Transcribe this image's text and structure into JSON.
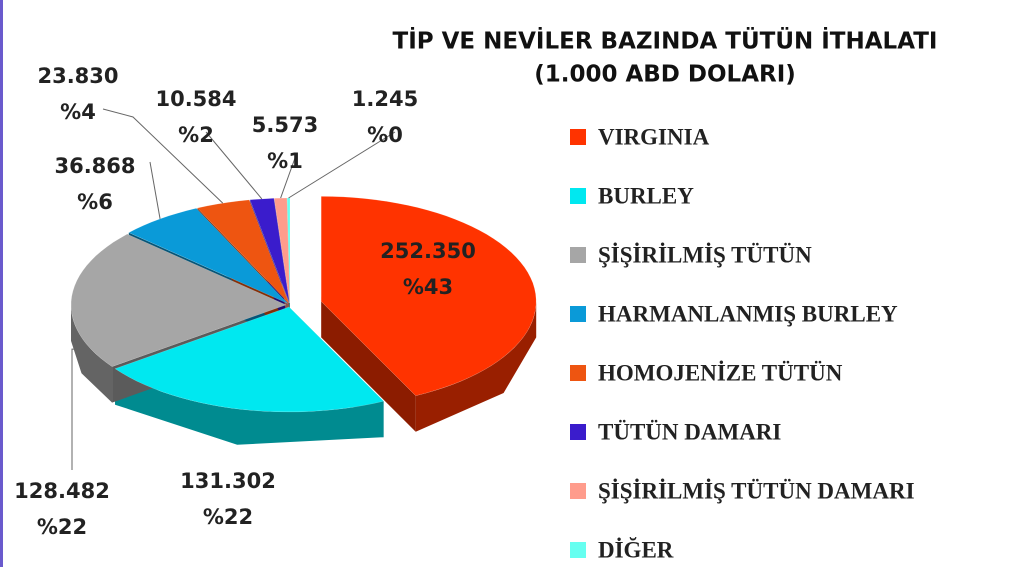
{
  "chart_data": {
    "type": "pie",
    "title": "TİP VE NEVİLER BAZINDA TÜTÜN İTHALATI",
    "subtitle": "(1.000 ABD DOLARI)",
    "categories": [
      "VIRGINIA",
      "BURLEY",
      "ŞİŞİRİLMİŞ TÜTÜN",
      "HARMANLANMIŞ BURLEY",
      "HOMOJENİZE TÜTÜN",
      "TÜTÜN DAMARI",
      "ŞİŞİRİLMİŞ TÜTÜN DAMARI",
      "DİĞER"
    ],
    "values": [
      252350,
      131302,
      128482,
      36868,
      23830,
      10584,
      5573,
      1245
    ],
    "value_labels": [
      "252.350",
      "131.302",
      "128.482",
      "36.868",
      "23.830",
      "10.584",
      "5.573",
      "1.245"
    ],
    "percent_labels": [
      "%43",
      "%22",
      "%22",
      "%6",
      "%4",
      "%2",
      "%1",
      "%0"
    ],
    "colors": [
      "#ff3300",
      "#00e8f0",
      "#a6a6a6",
      "#0a9ad8",
      "#ee5511",
      "#3a1ccc",
      "#ff9c8c",
      "#66fff0"
    ],
    "legend": "right"
  }
}
